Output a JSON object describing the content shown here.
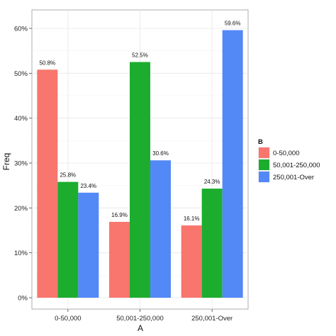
{
  "chart_data": {
    "type": "bar",
    "xlabel": "A",
    "ylabel": "Freq",
    "categories": [
      "0-50,000",
      "50,001-250,000",
      "250,001-Over"
    ],
    "ylim": [
      0,
      63
    ],
    "yticks": [
      0,
      10,
      20,
      30,
      40,
      50,
      60
    ],
    "ytick_labels": [
      "0%",
      "10%",
      "20%",
      "30%",
      "40%",
      "50%",
      "60%"
    ],
    "grid": true,
    "legend": {
      "title": "B",
      "placement": "right"
    },
    "series": [
      {
        "name": "0-50,000",
        "color": "#F8766D",
        "values": [
          50.8,
          16.9,
          16.1
        ],
        "labels": [
          "50.8%",
          "16.9%",
          "16.1%"
        ]
      },
      {
        "name": "50,001-250,000",
        "color": "#1CAD2E",
        "values": [
          25.8,
          52.5,
          24.3
        ],
        "labels": [
          "25.8%",
          "52.5%",
          "24.3%"
        ]
      },
      {
        "name": "250,001-Over",
        "color": "#5389F7",
        "values": [
          23.4,
          30.6,
          59.6
        ],
        "labels": [
          "23.4%",
          "30.6%",
          "59.6%"
        ]
      }
    ]
  }
}
